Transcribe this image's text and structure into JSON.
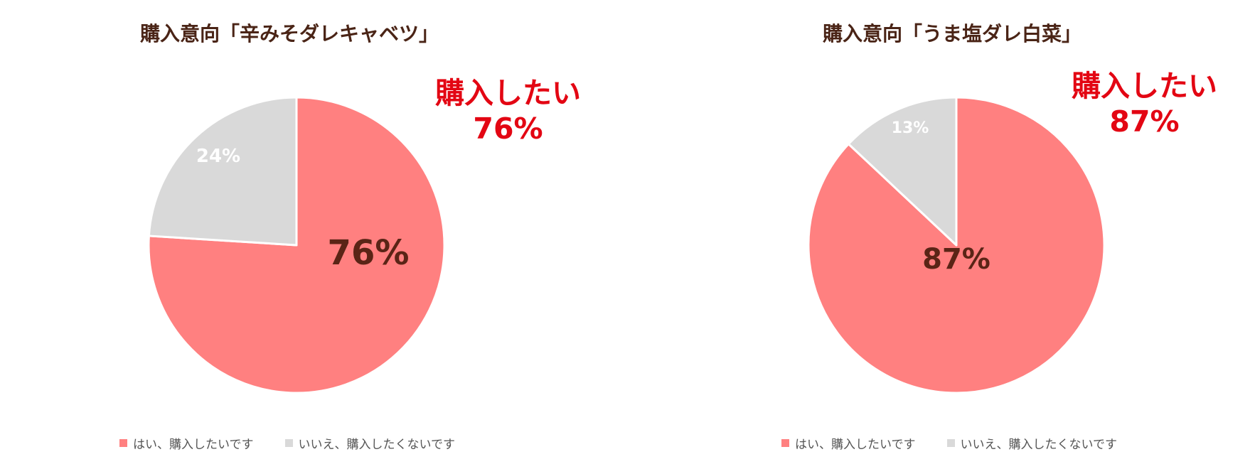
{
  "colors": {
    "yes": "#ff8080",
    "no": "#d9d9d9",
    "big_label": "#5a2416",
    "small_label": "#ffffff",
    "callout": "#e30613",
    "title": "#4a2416"
  },
  "legend": {
    "yes": "はい、購入したいです",
    "no": "いいえ、購入したくないです"
  },
  "charts": [
    {
      "title": "購入意向「辛みそダレキャベツ」",
      "callout_line1": "購入したい",
      "callout_line2": "76%",
      "yes_label": "76%",
      "no_label": "24%"
    },
    {
      "title": "購入意向「うま塩ダレ白菜」",
      "callout_line1": "購入したい",
      "callout_line2": "87%",
      "yes_label": "87%",
      "no_label": "13%"
    }
  ],
  "chart_data": [
    {
      "type": "pie",
      "title": "購入意向「辛みそダレキャベツ」",
      "categories": [
        "はい、購入したいです",
        "いいえ、購入したくないです"
      ],
      "values": [
        76,
        24
      ],
      "legend_position": "bottom"
    },
    {
      "type": "pie",
      "title": "購入意向「うま塩ダレ白菜」",
      "categories": [
        "はい、購入したいです",
        "いいえ、購入したくないです"
      ],
      "values": [
        87,
        13
      ],
      "legend_position": "bottom"
    }
  ]
}
